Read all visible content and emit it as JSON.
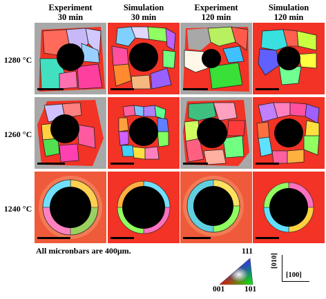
{
  "columns": [
    {
      "line1": "Experiment",
      "line2": "30 min"
    },
    {
      "line1": "Simulation",
      "line2": "30 min"
    },
    {
      "line1": "Experiment",
      "line2": "120 min"
    },
    {
      "line1": "Simulation",
      "line2": "120 min"
    }
  ],
  "rows": [
    "1280 °C",
    "1260 °C",
    "1240 °C"
  ],
  "note": "All micronbars are 400μm.",
  "legend": {
    "top": "111",
    "bottom_left": "001",
    "bottom_right": "101"
  },
  "axes": {
    "vertical": "[010]",
    "horizontal": "[100]"
  },
  "colors": {
    "matrix_red": "#f23325",
    "background_gray": "#a8a8a8",
    "hole": "#000000"
  }
}
